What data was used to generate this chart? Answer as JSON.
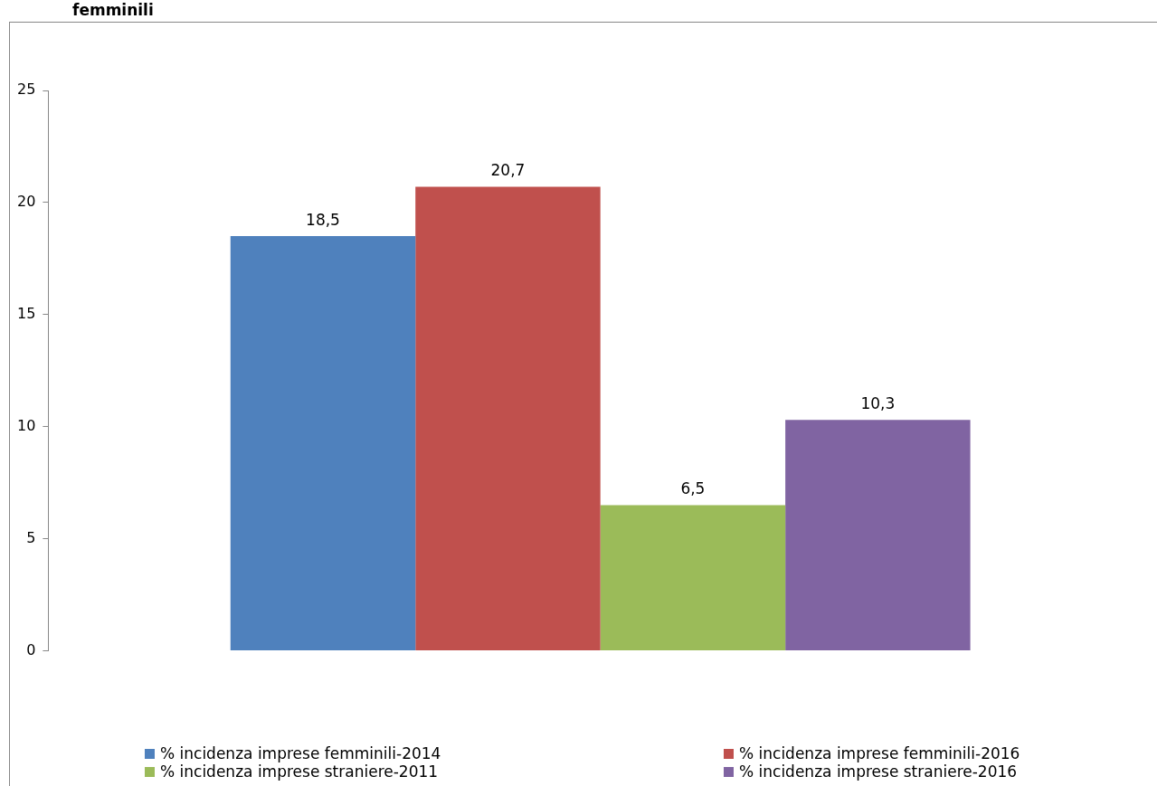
{
  "chart_data": {
    "type": "bar",
    "title": "femminili",
    "categories": [
      null
    ],
    "series": [
      {
        "name": "% incidenza imprese femminili-2014",
        "color": "#4f81bd",
        "values": [
          18.5
        ],
        "value_labels": [
          "18,5"
        ]
      },
      {
        "name": "% incidenza imprese femminili-2016",
        "color": "#c0504d",
        "values": [
          20.7
        ],
        "value_labels": [
          "20,7"
        ]
      },
      {
        "name": "% incidenza imprese straniere-2011",
        "color": "#9bbb59",
        "values": [
          6.5
        ],
        "value_labels": [
          "6,5"
        ]
      },
      {
        "name": "% incidenza imprese straniere-2016",
        "color": "#8064a2",
        "values": [
          10.3
        ],
        "value_labels": [
          "10,3"
        ]
      }
    ],
    "ylim": [
      0,
      25
    ],
    "yticks": [
      0,
      5,
      10,
      15,
      20,
      25
    ],
    "grid": false,
    "legend": "bottom"
  }
}
